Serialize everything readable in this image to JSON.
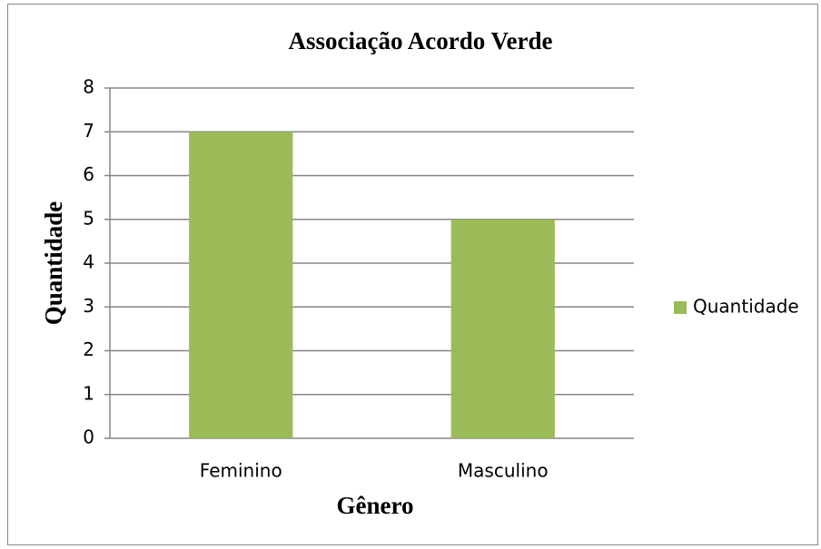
{
  "chart_data": {
    "type": "bar",
    "title": "Associação Acordo Verde",
    "x_label": "Gênero",
    "y_label": "Quantidade",
    "categories": [
      "Feminino",
      "Masculino"
    ],
    "series": [
      {
        "name": "Quantidade",
        "color": "#9bbb59",
        "values": [
          7,
          5
        ]
      }
    ],
    "ylim": [
      0,
      8
    ],
    "yticks": [
      0,
      1,
      2,
      3,
      4,
      5,
      6,
      7,
      8
    ],
    "grid": true,
    "legend": "right"
  }
}
